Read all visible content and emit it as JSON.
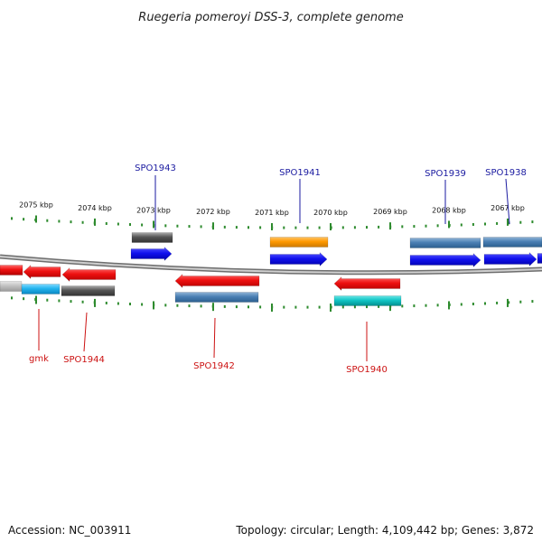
{
  "title": "Ruegeria pomeroyi DSS-3, complete genome",
  "footer": {
    "accession": "Accession: NC_003911",
    "summary": "Topology: circular; Length: 4,109,442 bp; Genes: 3,872"
  },
  "colors": {
    "tick": "#2e8b2e",
    "label_top": "#1a1aa0",
    "label_bottom": "#cc1111",
    "backbone": "#9a9a9a"
  },
  "kbp_ticks": [
    "2075 kbp",
    "2074 kbp",
    "2073 kbp",
    "2072 kbp",
    "2071 kbp",
    "2070 kbp",
    "2069 kbp",
    "2068 kbp",
    "2067 kbp"
  ],
  "top_labels": [
    "SPO1943",
    "SPO1941",
    "SPO1939",
    "SPO1938"
  ],
  "bottom_labels": [
    "gmk",
    "SPO1944",
    "SPO1942",
    "SPO1940"
  ]
}
